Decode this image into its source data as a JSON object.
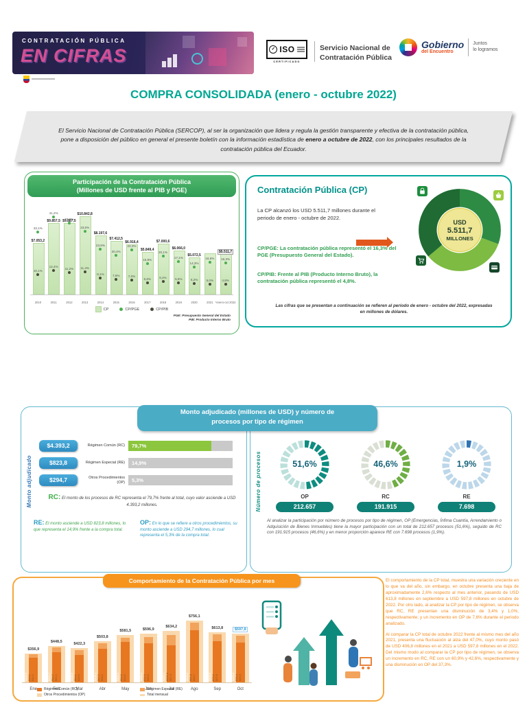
{
  "header": {
    "banner": {
      "kicker": "CONTRATACIÓN PÚBLICA",
      "title": "EN CIFRAS"
    },
    "iso": {
      "label": "ISO",
      "sub": "CERTIFICADO"
    },
    "org": {
      "line1": "Servicio Nacional de",
      "line2": "Contratación Pública"
    },
    "gov": {
      "name": "Gobierno",
      "sub": "del Encuentro",
      "tag1": "Juntos",
      "tag2": "lo logramos"
    }
  },
  "title": "COMPRA CONSOLIDADA (enero - octubre 2022)",
  "intro": {
    "pre": "El Servicio Nacional de Contratación Pública (SERCOP), al ser la organización que lidera y regula la gestión transparente y efectiva de la contratación pública, pone a disposición del público en general el presente boletín con la información estadística de ",
    "bold": "enero a octubre de 2022",
    "post": ", con los principales resultados de la contratación pública del Ecuador."
  },
  "participation": {
    "header1": "Participación de la Contratación Pública",
    "header2": "(Millones de USD frente al PIB y PGE)",
    "legend": {
      "cp": "CP",
      "pge": "CP/PGE",
      "pib": "CP/PIB"
    },
    "foot1": "PGE: Presupuesto General del Estado",
    "foot2": "PIB: Producto Interno Bruto"
  },
  "cp_panel": {
    "title": "Contratación Pública (CP)",
    "text": "La CP alcanzó los USD 5.511,7 millones durante el periodo de enero - octubre de 2022.",
    "center1": "USD",
    "center2": "5.511,7",
    "center3": "MILLONES",
    "pge_text": "CP/PGE: La contratación pública representó el 16,3% del PGE (Presupuesto General del Estado).",
    "pib_text": "CP/PIB: Frente al PIB (Producto Interno Bruto), la contratación pública representó el 4,8%.",
    "note": "Las cifras que se presentan a continuación se refieren al período de enero - octubre del 2022, expresadas en millones de dólares."
  },
  "regimen": {
    "header1": "Monto adjudicado (millones de USD) y número de",
    "header2": "procesos por tipo de régimen",
    "left_axis": "Monto adjudicado",
    "right_axis": "Número de procesos",
    "rows": [
      {
        "amount": "$4.393,2",
        "label": "Régimen Común (RC)",
        "pct": "79,7%",
        "value": 79.7,
        "fill": "#8CC63E"
      },
      {
        "amount": "$823,8",
        "label": "Régimen Especial (RE)",
        "pct": "14,9%",
        "value": 14.9,
        "fill": "transparent"
      },
      {
        "amount": "$294,7",
        "label": "Otros Procedimientos (OP)",
        "pct": "5,3%",
        "value": 5.3,
        "fill": "transparent"
      }
    ],
    "rc_note_prefix": "RC:",
    "rc_note": "El monto de los procesos de RC representa el 79,7% frente al total, cuyo valor asciende a USD 4.393,2 millones.",
    "re_note_prefix": "RE:",
    "re_note": "El monto asciende a USD 823,8 millones, lo que representa el 14,9% frente a la compra total.",
    "op_note_prefix": "OP:",
    "op_note": "En lo que se refiere a otros procedimientos, su monto asciende a USD 294,7 millones, lo cual representa el 5,3% de la compra total.",
    "donuts": [
      {
        "pct_label": "51,6%",
        "pct": 51.6,
        "name": "OP",
        "count": "212.657",
        "dark": "#0E8C80",
        "light": "#BCE0DB"
      },
      {
        "pct_label": "46,6%",
        "pct": 46.6,
        "name": "RC",
        "count": "191.915",
        "dark": "#6FAE44",
        "light": "#D9DFD3"
      },
      {
        "pct_label": "1,9%",
        "pct": 1.9,
        "name": "RE",
        "count": "7.698",
        "dark": "#2E74B5",
        "light": "#BDD7EA"
      }
    ],
    "analysis": "Al analizar la participación por número de procesos por tipo de régimen, OP (Emergencias, Ínfima Cuantía, Arrendamiento o Adquisición de Bienes Inmuebles) tiene la mayor participación con un total de 212.657 procesos (51,6%), seguido de RC con 191.915 procesos (46,6%) y en menor proporción aparece RE con 7.698 procesos (1,9%)."
  },
  "monthly": {
    "header": "Comportamiento de la Contratación Pública por mes",
    "legend": [
      "Régimen Común (RC)",
      "Régimen Especial (RE)",
      "Otros Procedimientos (OP)",
      "Total mensual"
    ],
    "p1": "El comportamiento de la CP total, muestra una variación creciente en lo que va del año, sin embargo, en octubre presenta una baja de aproximadamente 2,6% respecto al mes anterior, pasando de USD 613,8 millones en septiembre a USD 597,8 millones en octubre de 2022. Por otro lado, al analizar la CP por tipo de régimen, se observa que RC, RE presentan una disminución de 3,4% y 1,0%, respectivamente; y un incremento en OP de 7,6% durante el periodo analizado.",
    "p2": "Al comparar la CP total de octubre 2022 frente al mismo mes del año 2021, presenta una fluctuación al alza del 47,0%, cuyo monto pasó de USD 406,8 millones en el 2021 a USD 597,8 millones en el 2022. Del mismo modo al comparar la CP por tipo de régimen, se observa un incremento en RC, RE con un 60,9% y 42,6%, respectivamente y una disminución en OP del 37,3%."
  },
  "chart_data": [
    {
      "id": "participacion",
      "type": "bar",
      "title": "Participación de la Contratación Pública (Millones de USD frente al PIB y PGE)",
      "categories": [
        "2010",
        "2011",
        "2012",
        "2013",
        "2014",
        "2015",
        "2016",
        "2017",
        "2018",
        "2019",
        "2020",
        "2021",
        "*enero-oct 2022"
      ],
      "series": [
        {
          "name": "CP",
          "values": [
            7053.2,
            9857.5,
            9887.5,
            10842.8,
            8197.6,
            7412.5,
            6916.4,
            5849.4,
            7000.6,
            6066.0,
            5072.5,
            5600.0,
            5511.7
          ],
          "labels": [
            "$7.053,2",
            "$9.857,5",
            "$9.887,5",
            "$10.842,8",
            "$8.197,6",
            "$7.412,5",
            "$6.916,4",
            "$5.849,4",
            "$7.000,6",
            "$6.066,0",
            "$5.072,5",
            "",
            "$5.511,7"
          ]
        },
        {
          "name": "CP/PGE",
          "values": [
            33.1,
            41.2,
            37.9,
            33.5,
            23.9,
            20.4,
            23.2,
            15.9,
            20.1,
            17.1,
            14.3,
            16.6,
            16.3
          ],
          "labels": [
            "33,1%",
            "41,2%",
            "37,9%",
            "33,5%",
            "23,9%",
            "20,4%",
            "23,2%",
            "15,9%",
            "20,1%",
            "17,1%",
            "14,3%",
            "16,6%",
            "16,3%"
          ]
        },
        {
          "name": "CP/PIB",
          "values": [
            10.1,
            12.4,
            11.2,
            11.4,
            8.1,
            7.5,
            7.0,
            5.6,
            6.4,
            5.6,
            5.2,
            5.0,
            4.8
          ],
          "labels": [
            "10,1%",
            "12,4%",
            "11,2%",
            "11,4%",
            "8,1%",
            "7,5%",
            "7,0%",
            "5,6%",
            "6,4%",
            "5,6%",
            "5,2%",
            "5,0%",
            "4,8%"
          ]
        }
      ],
      "legend_position": "bottom"
    },
    {
      "id": "regimen",
      "type": "bar",
      "title": "Monto adjudicado (millones de USD) y número de procesos por tipo de régimen",
      "categories": [
        "Régimen Común (RC)",
        "Régimen Especial (RE)",
        "Otros Procedimientos (OP)"
      ],
      "series": [
        {
          "name": "Monto adjudicado (millones USD)",
          "values": [
            4393.2,
            823.8,
            294.7
          ]
        },
        {
          "name": "Participación monto (%)",
          "values": [
            79.7,
            14.9,
            5.3
          ]
        },
        {
          "name": "Número de procesos",
          "values": [
            191915,
            7698,
            212657
          ]
        },
        {
          "name": "Participación procesos (%)",
          "values": [
            46.6,
            1.9,
            51.6
          ]
        }
      ]
    },
    {
      "id": "mensual",
      "type": "bar",
      "title": "Comportamiento de la Contratación Pública por mes",
      "categories": [
        "Ene",
        "Feb",
        "Mar",
        "Abr",
        "May",
        "Jun",
        "Jul",
        "Ago",
        "Sep",
        "Oct"
      ],
      "series": [
        {
          "name": "Régimen Común (RC)",
          "values": [
            302.9,
            371.7,
            339.5,
            408.1,
            492.5,
            480.4,
            455.1,
            635.6,
            506.8,
            489.5
          ]
        },
        {
          "name": "Régimen Especial (RE)",
          "values": [
            43.1,
            54.7,
            54.1,
            67.5,
            54.5,
            76.9,
            121.8,
            91.8,
            79.2,
            78.4
          ]
        },
        {
          "name": "Otros Procedimientos (OP)",
          "values": [
            11.0,
            22.1,
            28.6,
            28.2,
            34.5,
            39.6,
            57.3,
            28.7,
            27.8,
            29.9
          ]
        },
        {
          "name": "Total mensual",
          "values": [
            356.9,
            448.5,
            422.3,
            503.8,
            581.5,
            596.9,
            634.2,
            756.1,
            613.8,
            597.8
          ],
          "labels": [
            "$356,9",
            "$448,5",
            "$422,3",
            "$503,8",
            "$581,5",
            "$596,9",
            "$634,2",
            "$756,1",
            "$613,8",
            "$597,8"
          ]
        }
      ]
    }
  ]
}
